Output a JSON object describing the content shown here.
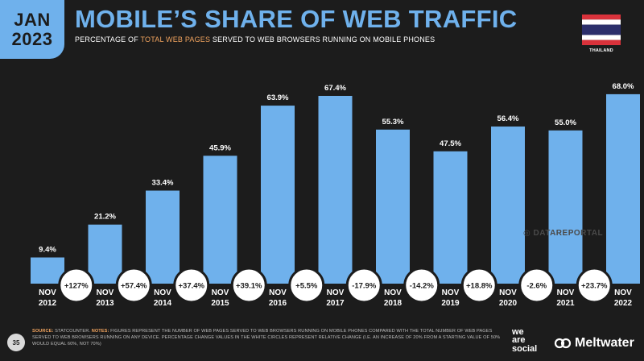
{
  "header": {
    "month": "JAN",
    "year": "2023",
    "title": "MOBILE’S SHARE OF WEB TRAFFIC",
    "subtitle_pre": "PERCENTAGE OF ",
    "subtitle_highlight": "TOTAL WEB PAGES",
    "subtitle_post": " SERVED TO WEB BROWSERS RUNNING ON MOBILE PHONES",
    "country": "THAILAND"
  },
  "colors": {
    "bar": "#6fb1ec",
    "accent": "#f0a35e",
    "background": "#1c1c1c",
    "flag_red": "#d9323b",
    "flag_white": "#ffffff",
    "flag_blue": "#2c2f6b"
  },
  "chart_data": {
    "type": "bar",
    "title": "MOBILE’S SHARE OF WEB TRAFFIC",
    "categories": [
      [
        "NOV",
        "2012"
      ],
      [
        "NOV",
        "2013"
      ],
      [
        "NOV",
        "2014"
      ],
      [
        "NOV",
        "2015"
      ],
      [
        "NOV",
        "2016"
      ],
      [
        "NOV",
        "2017"
      ],
      [
        "NOV",
        "2018"
      ],
      [
        "NOV",
        "2019"
      ],
      [
        "NOV",
        "2020"
      ],
      [
        "NOV",
        "2021"
      ],
      [
        "NOV",
        "2022"
      ]
    ],
    "values": [
      9.4,
      21.2,
      33.4,
      45.9,
      63.9,
      67.4,
      55.3,
      47.5,
      56.4,
      55.0,
      68.0
    ],
    "value_labels": [
      "9.4%",
      "21.2%",
      "33.4%",
      "45.9%",
      "63.9%",
      "67.4%",
      "55.3%",
      "47.5%",
      "56.4%",
      "55.0%",
      "68.0%"
    ],
    "changes": [
      "+127%",
      "+57.4%",
      "+37.4%",
      "+39.1%",
      "+5.5%",
      "-17.9%",
      "-14.2%",
      "+18.8%",
      "-2.6%",
      "+23.7%"
    ],
    "ylim": [
      0,
      70
    ],
    "grid": false,
    "xlabel": "",
    "ylabel": ""
  },
  "watermark": "DATAREPORTAL",
  "footer": {
    "page_number": "35",
    "source_label": "SOURCE:",
    "source_text": " STATCOUNTER. ",
    "notes_label": "NOTES:",
    "notes_text": " FIGURES REPRESENT THE NUMBER OF WEB PAGES SERVED TO WEB BROWSERS RUNNING ON MOBILE PHONES COMPARED WITH THE TOTAL NUMBER OF WEB PAGES SERVED TO WEB BROWSERS RUNNING ON ANY DEVICE. PERCENTAGE CHANGE VALUES IN THE WHITE CIRCLES REPRESENT RELATIVE CHANGE (I.E. AN INCREASE OF 20% FROM A STARTING VALUE OF 50% WOULD EQUAL 60%, NOT 70%)",
    "brand_we": "we",
    "brand_are": "are",
    "brand_social": "social",
    "brand_meltwater": "Meltwater"
  }
}
